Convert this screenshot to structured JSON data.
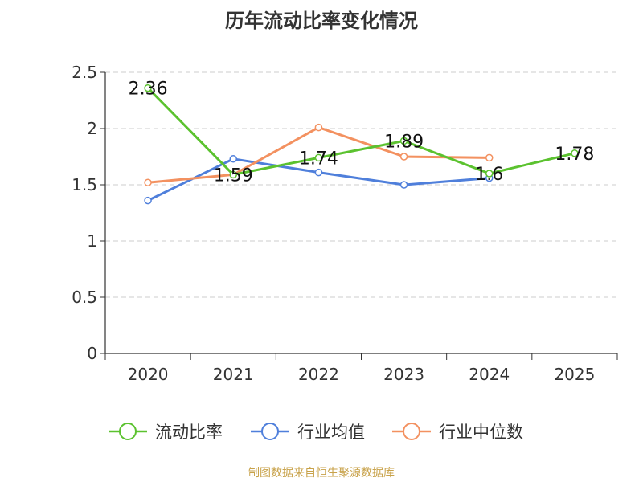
{
  "title": "历年流动比率变化情况",
  "source": "制图数据来自恒生聚源数据库",
  "chart_data": {
    "type": "line",
    "title": "历年流动比率变化情况",
    "categories": [
      "2020",
      "2021",
      "2022",
      "2023",
      "2024",
      "2025"
    ],
    "ylim": [
      0,
      2.5
    ],
    "yticks": [
      "0",
      "0.5",
      "1",
      "1.5",
      "2",
      "2.5"
    ],
    "grid": true,
    "legend_position": "bottom",
    "series": [
      {
        "name": "流动比率",
        "color": "#5bc22f",
        "values": [
          2.36,
          1.59,
          1.74,
          1.89,
          1.6,
          1.78
        ],
        "labels": [
          "2.36",
          "1.59",
          "1.74",
          "1.89",
          "1.6",
          "1.78"
        ]
      },
      {
        "name": "行业均值",
        "color": "#4f7fdb",
        "values": [
          1.36,
          1.73,
          1.61,
          1.5,
          1.56,
          null
        ]
      },
      {
        "name": "行业中位数",
        "color": "#f39160",
        "values": [
          1.52,
          1.59,
          2.01,
          1.75,
          1.74,
          null
        ]
      }
    ]
  }
}
